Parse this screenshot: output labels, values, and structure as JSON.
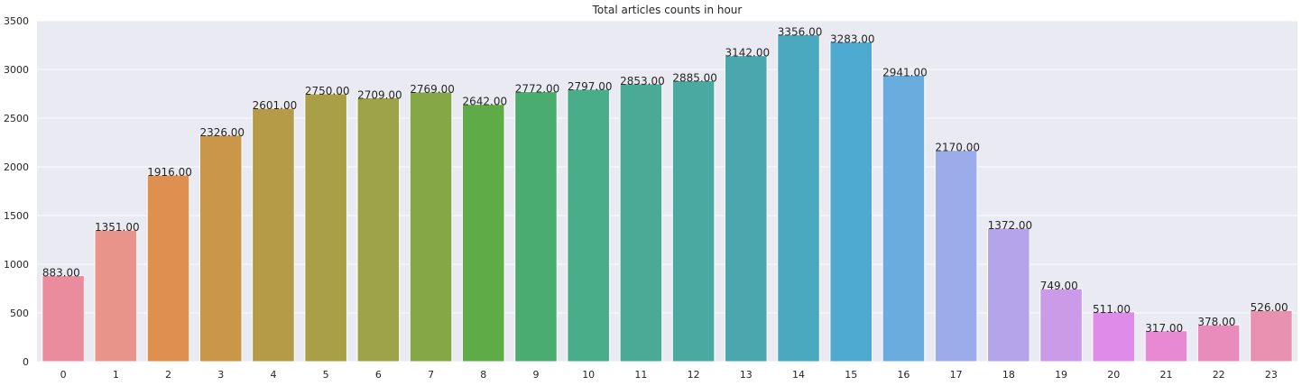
{
  "chart_data": {
    "type": "bar",
    "title": "Total articles counts in hour",
    "xlabel": "",
    "ylabel": "",
    "categories": [
      "0",
      "1",
      "2",
      "3",
      "4",
      "5",
      "6",
      "7",
      "8",
      "9",
      "10",
      "11",
      "12",
      "13",
      "14",
      "15",
      "16",
      "17",
      "18",
      "19",
      "20",
      "21",
      "22",
      "23"
    ],
    "values": [
      883,
      1351,
      1916,
      2326,
      2601,
      2750,
      2709,
      2769,
      2642,
      2772,
      2797,
      2853,
      2885,
      3142,
      3356,
      3283,
      2941,
      2170,
      1372,
      749,
      511,
      317,
      378,
      526
    ],
    "value_labels": [
      "883.00",
      "1351.00",
      "1916.00",
      "2326.00",
      "2601.00",
      "2750.00",
      "2709.00",
      "2769.00",
      "2642.00",
      "2772.00",
      "2797.00",
      "2853.00",
      "2885.00",
      "3142.00",
      "3356.00",
      "3283.00",
      "2941.00",
      "2170.00",
      "1372.00",
      "749.00",
      "511.00",
      "317.00",
      "378.00",
      "526.00"
    ],
    "ylim": [
      0,
      3500
    ],
    "yticks": [
      "0",
      "500",
      "1000",
      "1500",
      "2000",
      "2500",
      "3000",
      "3500"
    ],
    "grid": true,
    "background_color": "#eaeaf2",
    "colors": [
      "#ea8b9e",
      "#e8948a",
      "#df8f4f",
      "#c9964a",
      "#b59b47",
      "#a99f47",
      "#9ca349",
      "#86a745",
      "#5fab47",
      "#4aad6f",
      "#4aad89",
      "#4aaa96",
      "#4aa9a0",
      "#4aa7ae",
      "#4aa8bf",
      "#4eaad0",
      "#6aacde",
      "#9cacea",
      "#b5a4ea",
      "#cb9ae8",
      "#df8bea",
      "#e889d4",
      "#e98bbb",
      "#e991b0"
    ]
  }
}
